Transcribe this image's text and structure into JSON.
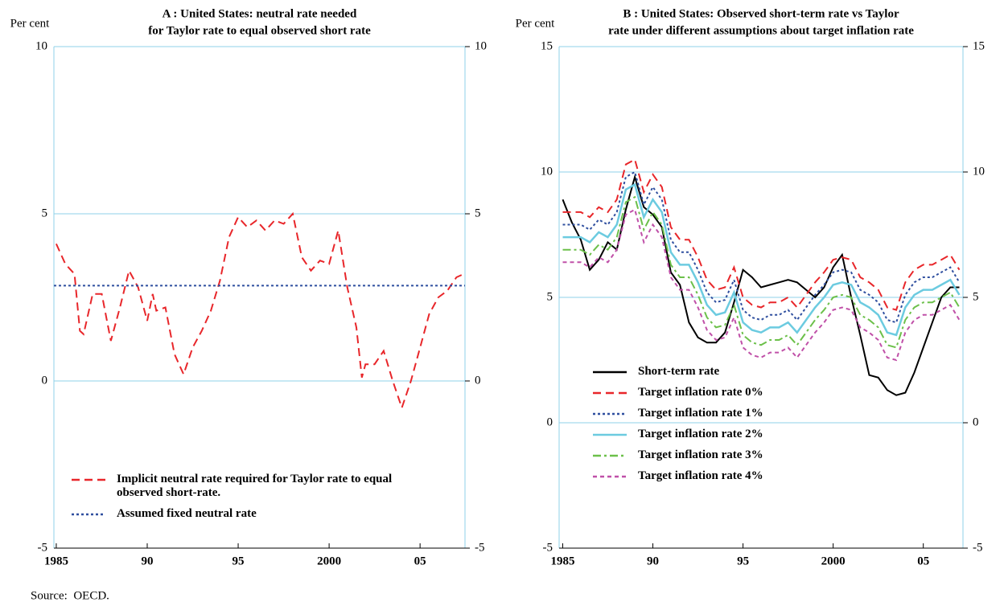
{
  "chart_data": [
    {
      "type": "line",
      "title": [
        "A : United States: neutral rate needed",
        "for Taylor rate to equal observed short rate"
      ],
      "ylabel": "Per cent",
      "xlim": [
        1984.87,
        2007.47
      ],
      "xticks": [
        1985,
        {
          "value": 1990,
          "label": "90"
        },
        {
          "value": 1995,
          "label": "95"
        },
        2000,
        {
          "value": 2005,
          "label": "05"
        }
      ],
      "ylim": [
        -5,
        10
      ],
      "yticks": [
        -5,
        0,
        5,
        10
      ],
      "grid": true,
      "legend": "lower left",
      "series": [
        {
          "name": "Implicit neutral rate required for Taylor rate to equal observed short-rate.",
          "color": "#e8262a",
          "dash": "10,6",
          "x": [
            1985,
            1985.5,
            1986,
            1986.3,
            1986.5,
            1987,
            1987.5,
            1988,
            1988.5,
            1989,
            1989.5,
            1990,
            1990.3,
            1990.5,
            1991,
            1991.5,
            1992,
            1992.5,
            1993,
            1993.5,
            1994,
            1994.5,
            1995,
            1995.5,
            1996,
            1996.5,
            1997,
            1997.5,
            1998,
            1998.5,
            1999,
            1999.5,
            2000,
            2000.5,
            2001,
            2001.5,
            2001.8,
            2002,
            2002.5,
            2003,
            2003.5,
            2004,
            2004.5,
            2005,
            2005.5,
            2006,
            2006.5,
            2007,
            2007.4
          ],
          "values": [
            4.1,
            3.5,
            3.2,
            1.5,
            1.4,
            2.6,
            2.6,
            1.2,
            2.2,
            3.3,
            2.8,
            1.8,
            2.6,
            2.1,
            2.2,
            0.8,
            0.2,
            1.0,
            1.5,
            2.1,
            3.0,
            4.3,
            4.9,
            4.6,
            4.8,
            4.5,
            4.8,
            4.7,
            5.0,
            3.7,
            3.3,
            3.6,
            3.5,
            4.5,
            2.8,
            1.6,
            0.1,
            0.5,
            0.5,
            0.9,
            0.0,
            -0.8,
            0.0,
            1.0,
            2.0,
            2.5,
            2.7,
            3.1,
            3.2
          ]
        },
        {
          "name": "Assumed fixed neutral rate",
          "color": "#2f4f9f",
          "dash": "3,3",
          "x": [
            1984.87,
            2007.47
          ],
          "values": [
            2.85,
            2.85
          ]
        }
      ]
    },
    {
      "type": "line",
      "title": [
        "B : United States: Observed short-term rate vs Taylor",
        "rate under different assumptions about target inflation rate"
      ],
      "ylabel": "Per cent",
      "xlim": [
        1984.8,
        2007.2
      ],
      "xticks": [
        1985,
        {
          "value": 1990,
          "label": "90"
        },
        {
          "value": 1995,
          "label": "95"
        },
        2000,
        {
          "value": 2005,
          "label": "05"
        }
      ],
      "ylim": [
        -5,
        15
      ],
      "yticks": [
        -5,
        0,
        5,
        10,
        15
      ],
      "grid": true,
      "legend": "center left",
      "x": [
        1985,
        1985.5,
        1986,
        1986.5,
        1987,
        1987.5,
        1988,
        1988.5,
        1989,
        1989.5,
        1990,
        1990.5,
        1991,
        1991.5,
        1992,
        1992.5,
        1993,
        1993.5,
        1994,
        1994.5,
        1995,
        1995.5,
        1996,
        1996.5,
        1997,
        1997.5,
        1998,
        1998.5,
        1999,
        1999.5,
        2000,
        2000.5,
        2001,
        2001.5,
        2002,
        2002.5,
        2003,
        2003.5,
        2004,
        2004.5,
        2005,
        2005.5,
        2006,
        2006.5,
        2007
      ],
      "series": [
        {
          "name": "Short-term rate",
          "color": "#000000",
          "dash": "",
          "values": [
            8.9,
            8.0,
            7.3,
            6.1,
            6.5,
            7.2,
            6.9,
            8.5,
            9.8,
            8.6,
            8.3,
            7.8,
            6.0,
            5.5,
            4.0,
            3.4,
            3.2,
            3.2,
            3.6,
            4.8,
            6.1,
            5.8,
            5.4,
            5.5,
            5.6,
            5.7,
            5.6,
            5.3,
            5.0,
            5.4,
            6.2,
            6.7,
            5.0,
            3.5,
            1.9,
            1.8,
            1.3,
            1.1,
            1.2,
            2.0,
            3.0,
            4.0,
            5.0,
            5.4,
            5.4
          ]
        },
        {
          "name": "Target inflation rate 0%",
          "color": "#e8262a",
          "dash": "10,6",
          "values": [
            8.4,
            8.4,
            8.4,
            8.2,
            8.6,
            8.4,
            8.9,
            10.3,
            10.5,
            9.2,
            9.9,
            9.4,
            7.8,
            7.3,
            7.3,
            6.6,
            5.7,
            5.3,
            5.4,
            6.2,
            5.0,
            4.7,
            4.6,
            4.8,
            4.8,
            5.0,
            4.6,
            5.1,
            5.6,
            6.0,
            6.5,
            6.6,
            6.5,
            5.8,
            5.6,
            5.3,
            4.6,
            4.5,
            5.6,
            6.1,
            6.3,
            6.3,
            6.5,
            6.7,
            6.1
          ]
        },
        {
          "name": "Target inflation rate 1%",
          "color": "#2f4f9f",
          "dash": "3,3",
          "values": [
            7.9,
            7.9,
            7.9,
            7.7,
            8.1,
            7.9,
            8.4,
            9.8,
            10.0,
            8.7,
            9.4,
            8.9,
            7.3,
            6.8,
            6.8,
            6.1,
            5.2,
            4.8,
            4.9,
            5.7,
            4.5,
            4.2,
            4.1,
            4.3,
            4.3,
            4.5,
            4.1,
            4.6,
            5.1,
            5.5,
            6.0,
            6.1,
            6.0,
            5.3,
            5.1,
            4.8,
            4.1,
            4.0,
            5.1,
            5.6,
            5.8,
            5.8,
            6.0,
            6.2,
            5.6
          ]
        },
        {
          "name": "Target inflation rate 2%",
          "color": "#6ccbe0",
          "dash": "",
          "values": [
            7.4,
            7.4,
            7.4,
            7.2,
            7.6,
            7.4,
            7.9,
            9.3,
            9.5,
            8.2,
            8.9,
            8.4,
            6.8,
            6.3,
            6.3,
            5.6,
            4.7,
            4.3,
            4.4,
            5.2,
            4.0,
            3.7,
            3.6,
            3.8,
            3.8,
            4.0,
            3.6,
            4.1,
            4.6,
            5.0,
            5.5,
            5.6,
            5.5,
            4.8,
            4.6,
            4.3,
            3.6,
            3.5,
            4.6,
            5.1,
            5.3,
            5.3,
            5.5,
            5.7,
            5.1
          ]
        },
        {
          "name": "Target inflation rate 3%",
          "color": "#6cc04a",
          "dash": "10,4,3,4",
          "values": [
            6.9,
            6.9,
            6.9,
            6.7,
            7.1,
            6.9,
            7.4,
            8.8,
            9.0,
            7.7,
            8.4,
            7.9,
            6.3,
            5.8,
            5.8,
            5.1,
            4.2,
            3.8,
            3.9,
            4.7,
            3.5,
            3.2,
            3.1,
            3.3,
            3.3,
            3.5,
            3.1,
            3.6,
            4.1,
            4.5,
            5.0,
            5.1,
            5.0,
            4.3,
            4.1,
            3.8,
            3.1,
            3.0,
            4.1,
            4.6,
            4.8,
            4.8,
            5.0,
            5.2,
            4.6
          ]
        },
        {
          "name": "Target inflation rate 4%",
          "color": "#c050a8",
          "dash": "5,4",
          "values": [
            6.4,
            6.4,
            6.4,
            6.2,
            6.6,
            6.4,
            6.9,
            8.3,
            8.5,
            7.2,
            7.9,
            7.4,
            5.8,
            5.3,
            5.3,
            4.6,
            3.7,
            3.3,
            3.4,
            4.2,
            3.0,
            2.7,
            2.6,
            2.8,
            2.8,
            3.0,
            2.6,
            3.1,
            3.6,
            4.0,
            4.5,
            4.6,
            4.5,
            3.8,
            3.6,
            3.3,
            2.6,
            2.5,
            3.6,
            4.1,
            4.3,
            4.3,
            4.5,
            4.7,
            4.1
          ]
        }
      ]
    }
  ],
  "source": "Source:  OECD."
}
